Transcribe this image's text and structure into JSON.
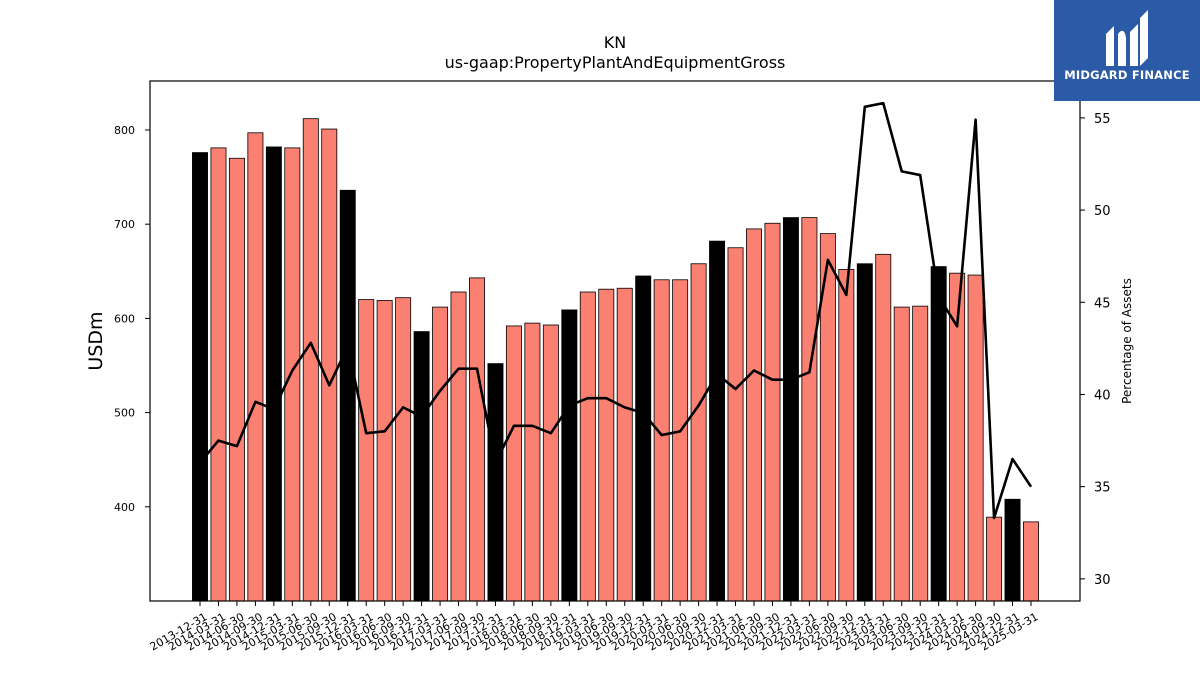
{
  "chart_data": {
    "type": "bar+line",
    "title": "KN",
    "subtitle": "us-gaap:PropertyPlantAndEquipmentGross",
    "ylabel": "USDm",
    "y2label": "Percentage of Assets",
    "ylim": [
      300,
      852
    ],
    "y2lim": [
      28.8,
      57.0
    ],
    "yticks": [
      400,
      500,
      600,
      700,
      800
    ],
    "y2ticks": [
      30,
      35,
      40,
      45,
      50,
      55
    ],
    "categories": [
      "2013-12-31",
      "2014-03-31",
      "2014-06-30",
      "2014-09-30",
      "2014-12-31",
      "2015-03-31",
      "2015-06-30",
      "2015-09-30",
      "2015-12-31",
      "2016-03-31",
      "2016-06-30",
      "2016-09-30",
      "2016-12-31",
      "2017-03-31",
      "2017-06-30",
      "2017-09-30",
      "2017-12-31",
      "2018-03-31",
      "2018-06-30",
      "2018-09-30",
      "2018-12-31",
      "2019-03-31",
      "2019-06-30",
      "2019-09-30",
      "2019-12-31",
      "2020-03-31",
      "2020-06-30",
      "2020-09-30",
      "2020-12-31",
      "2021-03-31",
      "2021-06-30",
      "2021-09-30",
      "2021-12-31",
      "2022-03-31",
      "2022-06-30",
      "2022-09-30",
      "2022-12-31",
      "2023-03-31",
      "2023-06-30",
      "2023-09-30",
      "2023-12-31",
      "2024-03-31",
      "2024-06-30",
      "2024-09-30",
      "2024-12-31",
      "2025-03-31"
    ],
    "series": [
      {
        "kind": "bar",
        "values": [
          776,
          781,
          770,
          797,
          782,
          781,
          812,
          801,
          736,
          620,
          619,
          622,
          586,
          612,
          628,
          643,
          552,
          592,
          595,
          593,
          609,
          628,
          631,
          632,
          645,
          641,
          641,
          658,
          682,
          675,
          695,
          701,
          707,
          707,
          690,
          652,
          658,
          668,
          612,
          613,
          655,
          648,
          646,
          389,
          408,
          384
        ],
        "colors": [
          "#000000",
          "#fa8072",
          "#fa8072",
          "#fa8072",
          "#000000",
          "#fa8072",
          "#fa8072",
          "#fa8072",
          "#000000",
          "#fa8072",
          "#fa8072",
          "#fa8072",
          "#000000",
          "#fa8072",
          "#fa8072",
          "#fa8072",
          "#000000",
          "#fa8072",
          "#fa8072",
          "#fa8072",
          "#000000",
          "#fa8072",
          "#fa8072",
          "#fa8072",
          "#000000",
          "#fa8072",
          "#fa8072",
          "#fa8072",
          "#000000",
          "#fa8072",
          "#fa8072",
          "#fa8072",
          "#000000",
          "#fa8072",
          "#fa8072",
          "#fa8072",
          "#000000",
          "#fa8072",
          "#fa8072",
          "#fa8072",
          "#000000",
          "#fa8072",
          "#fa8072",
          "#fa8072",
          "#000000",
          "#fa8072"
        ]
      },
      {
        "kind": "line",
        "axis": "right",
        "color": "#000000",
        "values": [
          36.3,
          37.5,
          37.2,
          39.6,
          39.2,
          41.3,
          42.8,
          40.5,
          42.6,
          37.9,
          38.0,
          39.3,
          38.8,
          40.2,
          41.4,
          41.4,
          36.3,
          38.3,
          38.3,
          37.9,
          39.4,
          39.8,
          39.8,
          39.3,
          39.0,
          37.8,
          38.0,
          39.4,
          41.1,
          40.3,
          41.3,
          40.8,
          40.8,
          41.2,
          47.3,
          45.4,
          55.6,
          55.8,
          52.1,
          51.9,
          45.3,
          43.7,
          54.9,
          33.3,
          36.5,
          35.0
        ]
      }
    ],
    "legend": "none",
    "grid": false
  },
  "logo": {
    "text": "MIDGARD FINANCE",
    "background": "#2b5aa6"
  }
}
